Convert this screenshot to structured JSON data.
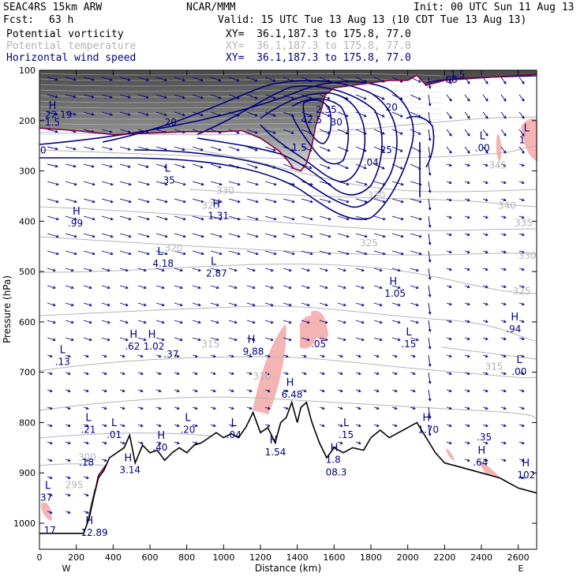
{
  "header": {
    "model": "SEAC4RS 15km ARW",
    "org": "NCAR/MMM",
    "init": "Init: 00 UTC Sun 11 Aug 13",
    "fcst_label": "Fcst:",
    "fcst_value": "63 h",
    "valid": "Valid: 15 UTC Tue 13 Aug 13 (10 CDT Tue 13 Aug 13)",
    "fields": [
      {
        "name": "Potential vorticity",
        "xy": "XY=  36.1,187.3 to 175.8, 77.0",
        "color": "#000000"
      },
      {
        "name": "Potential temperature",
        "xy": "XY=  36.1,187.3 to 175.8, 77.0",
        "color": "#b4b4b4"
      },
      {
        "name": "Horizontal wind speed",
        "xy": "XY=  36.1,187.3 to 175.8, 77.0",
        "color": "#000080"
      }
    ]
  },
  "chart_data": {
    "type": "cross-section",
    "xlabel": "Distance (km)",
    "ylabel": "Pressure (hPa)",
    "xlim": [
      0,
      2700
    ],
    "ylim": [
      1050,
      100
    ],
    "x_ticks": [
      0,
      200,
      400,
      600,
      800,
      1000,
      1200,
      1400,
      1600,
      1800,
      2000,
      2200,
      2400,
      2600
    ],
    "y_ticks": [
      100,
      200,
      300,
      400,
      500,
      600,
      700,
      800,
      900,
      1000
    ],
    "x_end_labels": {
      "left": "W",
      "right": "E"
    },
    "colors": {
      "wind_contour": "#000080",
      "theta_contour": "#b4b4b4",
      "pv_positive": "#f5b4b4",
      "tropopause": "#800040",
      "terrain": "#000000",
      "axis": "#000000"
    },
    "terrain": [
      [
        0,
        1020
      ],
      [
        240,
        1020
      ],
      [
        270,
        990
      ],
      [
        300,
        940
      ],
      [
        320,
        910
      ],
      [
        350,
        895
      ],
      [
        380,
        870
      ],
      [
        420,
        860
      ],
      [
        460,
        850
      ],
      [
        490,
        825
      ],
      [
        520,
        880
      ],
      [
        560,
        845
      ],
      [
        600,
        860
      ],
      [
        640,
        855
      ],
      [
        680,
        875
      ],
      [
        720,
        860
      ],
      [
        760,
        850
      ],
      [
        800,
        860
      ],
      [
        840,
        845
      ],
      [
        880,
        840
      ],
      [
        920,
        830
      ],
      [
        960,
        820
      ],
      [
        1000,
        830
      ],
      [
        1040,
        822
      ],
      [
        1080,
        830
      ],
      [
        1120,
        810
      ],
      [
        1160,
        780
      ],
      [
        1200,
        820
      ],
      [
        1240,
        810
      ],
      [
        1280,
        840
      ],
      [
        1310,
        800
      ],
      [
        1340,
        790
      ],
      [
        1370,
        760
      ],
      [
        1400,
        800
      ],
      [
        1420,
        770
      ],
      [
        1450,
        760
      ],
      [
        1480,
        800
      ],
      [
        1520,
        840
      ],
      [
        1560,
        870
      ],
      [
        1600,
        850
      ],
      [
        1650,
        860
      ],
      [
        1700,
        850
      ],
      [
        1760,
        855
      ],
      [
        1800,
        830
      ],
      [
        1850,
        815
      ],
      [
        1900,
        830
      ],
      [
        1950,
        820
      ],
      [
        2000,
        810
      ],
      [
        2050,
        800
      ],
      [
        2100,
        830
      ],
      [
        2150,
        860
      ],
      [
        2200,
        880
      ],
      [
        2300,
        890
      ],
      [
        2400,
        900
      ],
      [
        2500,
        910
      ],
      [
        2600,
        930
      ],
      [
        2700,
        940
      ]
    ],
    "tropopause": [
      [
        0,
        215
      ],
      [
        200,
        220
      ],
      [
        400,
        228
      ],
      [
        600,
        225
      ],
      [
        800,
        222
      ],
      [
        1000,
        222
      ],
      [
        1100,
        220
      ],
      [
        1200,
        235
      ],
      [
        1300,
        260
      ],
      [
        1350,
        280
      ],
      [
        1380,
        295
      ],
      [
        1420,
        300
      ],
      [
        1450,
        285
      ],
      [
        1480,
        250
      ],
      [
        1500,
        210
      ],
      [
        1530,
        180
      ],
      [
        1550,
        150
      ],
      [
        1600,
        135
      ],
      [
        1700,
        130
      ],
      [
        1800,
        125
      ],
      [
        1900,
        120
      ],
      [
        2000,
        120
      ],
      [
        2050,
        110
      ],
      [
        2100,
        130
      ],
      [
        2200,
        120
      ],
      [
        2400,
        115
      ],
      [
        2700,
        108
      ]
    ],
    "wind_labels": [
      {
        "x": 30,
        "p": 195,
        "t": "22.19"
      },
      {
        "x": 30,
        "p": 210,
        "t": "1.5"
      },
      {
        "x": 680,
        "p": 210,
        "t": "20"
      },
      {
        "x": 1500,
        "p": 185,
        "t": "2.35"
      },
      {
        "x": 1420,
        "p": 205,
        "t": "42.5"
      },
      {
        "x": 1580,
        "p": 210,
        "t": "30"
      },
      {
        "x": 1880,
        "p": 180,
        "t": "20"
      },
      {
        "x": 1850,
        "p": 265,
        "t": "25"
      },
      {
        "x": 1760,
        "p": 290,
        "t": ".04"
      },
      {
        "x": 1370,
        "p": 260,
        "t": "1.5"
      },
      {
        "x": 2230,
        "p": 115,
        "t": "1.5"
      }
    ],
    "theta_labels": [
      {
        "x": 880,
        "p": 375,
        "t": "325"
      },
      {
        "x": 960,
        "p": 345,
        "t": "330"
      },
      {
        "x": 680,
        "p": 460,
        "t": "320"
      },
      {
        "x": 1740,
        "p": 450,
        "t": "325"
      },
      {
        "x": 1780,
        "p": 355,
        "t": "330"
      },
      {
        "x": 2440,
        "p": 295,
        "t": "345"
      },
      {
        "x": 2490,
        "p": 375,
        "t": "340"
      },
      {
        "x": 2580,
        "p": 410,
        "t": "335"
      },
      {
        "x": 2600,
        "p": 475,
        "t": "330"
      },
      {
        "x": 2570,
        "p": 545,
        "t": "325"
      },
      {
        "x": 880,
        "p": 650,
        "t": "315"
      },
      {
        "x": 2420,
        "p": 695,
        "t": "315"
      },
      {
        "x": 1160,
        "p": 715,
        "t": "310"
      },
      {
        "x": 210,
        "p": 875,
        "t": "300"
      },
      {
        "x": 140,
        "p": 930,
        "t": "295"
      }
    ],
    "extrema": [
      {
        "x": 50,
        "p": 180,
        "t": "H",
        "v": ""
      },
      {
        "x": 30,
        "p": 245,
        "t": "",
        "v": "0"
      },
      {
        "x": 680,
        "p": 305,
        "t": "L",
        "v": ".35"
      },
      {
        "x": 940,
        "p": 375,
        "t": "H",
        "v": "1.31"
      },
      {
        "x": 180,
        "p": 390,
        "t": "H",
        "v": ".99"
      },
      {
        "x": 640,
        "p": 470,
        "t": "L",
        "v": "4.18"
      },
      {
        "x": 930,
        "p": 490,
        "t": "L",
        "v": "2.87"
      },
      {
        "x": 1900,
        "p": 530,
        "t": "H",
        "v": "1.05"
      },
      {
        "x": 490,
        "p": 635,
        "t": "H",
        "v": ".62"
      },
      {
        "x": 590,
        "p": 635,
        "t": "H",
        "v": "1.02"
      },
      {
        "x": 700,
        "p": 650,
        "t": "",
        "v": ".37"
      },
      {
        "x": 1130,
        "p": 645,
        "t": "H",
        "v": "9.88"
      },
      {
        "x": 1500,
        "p": 630,
        "t": "",
        "v": ".05"
      },
      {
        "x": 1990,
        "p": 630,
        "t": "L",
        "v": ".15"
      },
      {
        "x": 2560,
        "p": 600,
        "t": "H",
        "v": ".94"
      },
      {
        "x": 2590,
        "p": 685,
        "t": "L",
        "v": ".00"
      },
      {
        "x": 110,
        "p": 665,
        "t": "L",
        "v": ".13"
      },
      {
        "x": 1340,
        "p": 730,
        "t": "H",
        "v": "6.48"
      },
      {
        "x": 2390,
        "p": 240,
        "t": "L",
        "v": ".00"
      },
      {
        "x": 2630,
        "p": 225,
        "t": "L",
        "v": "1"
      },
      {
        "x": 2080,
        "p": 800,
        "t": "H",
        "v": "1.70"
      },
      {
        "x": 250,
        "p": 800,
        "t": "L",
        "v": ".21"
      },
      {
        "x": 390,
        "p": 810,
        "t": "L",
        "v": ".01"
      },
      {
        "x": 790,
        "p": 800,
        "t": "L",
        "v": ".20"
      },
      {
        "x": 640,
        "p": 835,
        "t": "H",
        "v": ".40"
      },
      {
        "x": 1040,
        "p": 810,
        "t": "L",
        "v": ".04"
      },
      {
        "x": 1650,
        "p": 810,
        "t": "L",
        "v": ".15"
      },
      {
        "x": 2400,
        "p": 815,
        "t": "",
        "v": ".35"
      },
      {
        "x": 1250,
        "p": 845,
        "t": "H",
        "v": "1.54"
      },
      {
        "x": 1580,
        "p": 860,
        "t": "H",
        "v": "1.8"
      },
      {
        "x": 2380,
        "p": 865,
        "t": "H",
        "v": ".64"
      },
      {
        "x": 2620,
        "p": 890,
        "t": "H",
        "v": "102"
      },
      {
        "x": 460,
        "p": 880,
        "t": "H",
        "v": "3.14"
      },
      {
        "x": 240,
        "p": 865,
        "t": "",
        "v": ".18"
      },
      {
        "x": 30,
        "p": 935,
        "t": "L",
        "v": "37"
      },
      {
        "x": 50,
        "p": 1000,
        "t": "",
        "v": "17"
      },
      {
        "x": 250,
        "p": 1005,
        "t": "H",
        "v": "12.89"
      },
      {
        "x": 1580,
        "p": 885,
        "t": "",
        "v": "08.3"
      },
      {
        "x": 2230,
        "p": 105,
        "t": "",
        "v": "08"
      }
    ]
  }
}
